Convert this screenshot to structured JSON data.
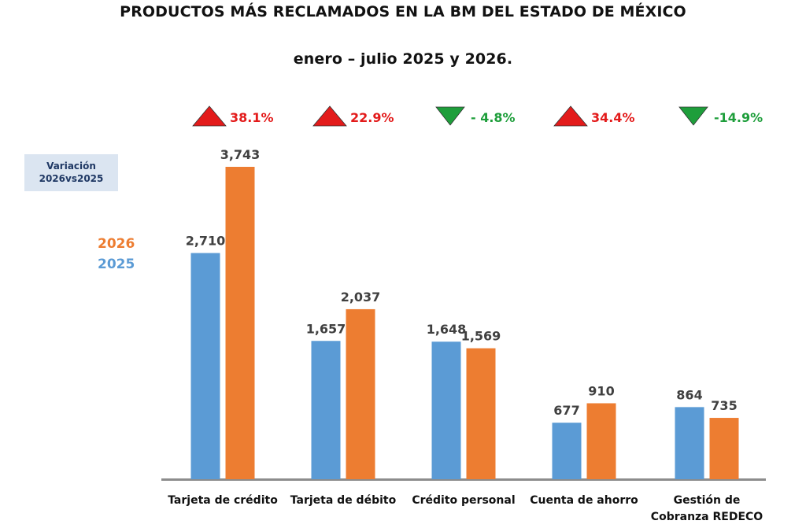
{
  "title_line1": "PRODUCTOS MÁS RECLAMADOS EN LA BM DEL ESTADO DE MÉXICO",
  "title_line2": "enero – julio 2025 y 2026.",
  "variation_box": {
    "line1": "Variación",
    "line2": "2026vs2025"
  },
  "colors": {
    "s2025": "#5b9bd5",
    "s2026": "#ed7d31",
    "up": "#e31b1b",
    "down": "#1e9e3b",
    "axis": "#8c8c8c"
  },
  "chart_data": {
    "type": "bar",
    "categories": [
      [
        "Tarjeta de crédito"
      ],
      [
        "Tarjeta de débito"
      ],
      [
        "Crédito personal"
      ],
      [
        "Cuenta de ahorro"
      ],
      [
        "Gestión de",
        "Cobranza REDECO"
      ]
    ],
    "series": [
      {
        "name": "2025",
        "values": [
          2710,
          1657,
          1648,
          677,
          864
        ],
        "labels": [
          "2,710",
          "1,657",
          "1,648",
          "677",
          "864"
        ]
      },
      {
        "name": "2026",
        "values": [
          3743,
          2037,
          1569,
          910,
          735
        ],
        "labels": [
          "3,743",
          "2,037",
          "1,569",
          "910",
          "735"
        ]
      }
    ],
    "variation": [
      {
        "direction": "up",
        "label": "38.1%"
      },
      {
        "direction": "up",
        "label": "22.9%"
      },
      {
        "direction": "down",
        "label": "- 4.8%"
      },
      {
        "direction": "up",
        "label": "34.4%"
      },
      {
        "direction": "down",
        "label": "-14.9%"
      }
    ],
    "ylim": [
      0,
      3743
    ],
    "legend_position": "left"
  }
}
